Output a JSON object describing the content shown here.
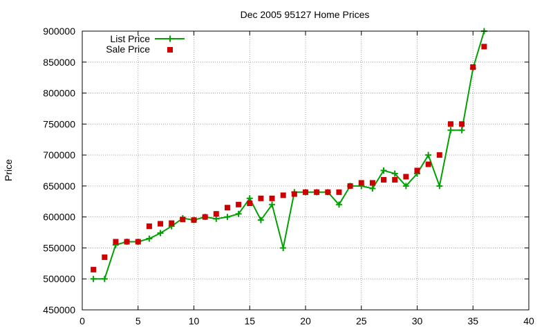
{
  "chart_data": {
    "type": "line",
    "title": "Dec 2005 95127 Home Prices",
    "xlabel": "",
    "ylabel": "Price",
    "xlim": [
      0,
      40
    ],
    "ylim": [
      450000,
      900000
    ],
    "x_ticks": [
      0,
      5,
      10,
      15,
      20,
      25,
      30,
      35,
      40
    ],
    "y_ticks": [
      450000,
      500000,
      550000,
      600000,
      650000,
      700000,
      750000,
      800000,
      850000,
      900000
    ],
    "grid": true,
    "legend_position": "top-left",
    "series": [
      {
        "name": "List Price",
        "style": "line-with-plus-markers",
        "color": "#00a000",
        "x": [
          1,
          2,
          3,
          4,
          5,
          6,
          7,
          8,
          9,
          10,
          11,
          12,
          13,
          14,
          15,
          16,
          17,
          18,
          19,
          20,
          21,
          22,
          23,
          24,
          25,
          26,
          27,
          28,
          29,
          30,
          31,
          32,
          33,
          34,
          35,
          36
        ],
        "values": [
          500000,
          500000,
          555000,
          560000,
          560000,
          565000,
          574000,
          585000,
          598000,
          595000,
          600000,
          597000,
          600000,
          605000,
          630000,
          595000,
          620000,
          550000,
          640000,
          640000,
          640000,
          640000,
          620000,
          650000,
          650000,
          646000,
          675000,
          670000,
          650000,
          670000,
          700000,
          650000,
          740000,
          740000,
          840000,
          900000
        ]
      },
      {
        "name": "Sale Price",
        "style": "square-markers",
        "color": "#cc0000",
        "x": [
          1,
          2,
          3,
          4,
          5,
          6,
          7,
          8,
          9,
          10,
          11,
          12,
          13,
          14,
          15,
          16,
          17,
          18,
          19,
          20,
          21,
          22,
          23,
          24,
          25,
          26,
          27,
          28,
          29,
          30,
          31,
          32,
          33,
          34,
          35,
          36
        ],
        "values": [
          515000,
          535000,
          560000,
          560000,
          560000,
          585000,
          589000,
          590000,
          596000,
          595000,
          600000,
          605000,
          615000,
          620000,
          622000,
          630000,
          630000,
          635000,
          637000,
          640000,
          640000,
          640000,
          640000,
          650000,
          655000,
          655000,
          660000,
          660000,
          665000,
          675000,
          685000,
          700000,
          750000,
          750000,
          842000,
          875000
        ]
      }
    ]
  }
}
